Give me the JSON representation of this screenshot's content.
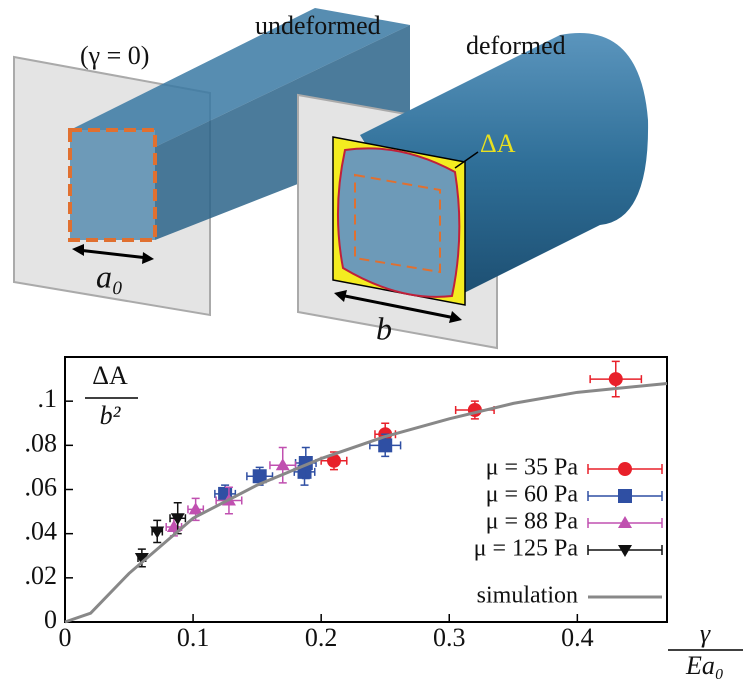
{
  "diagram": {
    "undeformed": "undeformed",
    "undeformed_condition": "(γ = 0)",
    "deformed": "deformed",
    "area_label": "ΔA",
    "side_undeformed": "a₀",
    "side_deformed": "b"
  },
  "chart_data": {
    "type": "scatter",
    "ylabel_numerator": "ΔA",
    "ylabel_denominator": "b²",
    "xlabel_numerator": "γ",
    "xlabel_denominator": "Ea₀",
    "xlim": [
      0,
      0.47
    ],
    "ylim": [
      0,
      0.12
    ],
    "xticks": [
      0,
      0.1,
      0.2,
      0.3,
      0.4
    ],
    "yticks": [
      0,
      {
        "value": 0.02,
        "label": ".02"
      },
      {
        "value": 0.04,
        "label": ".04"
      },
      {
        "value": 0.06,
        "label": ".06"
      },
      {
        "value": 0.08,
        "label": ".08"
      },
      {
        "value": 0.1,
        "label": ".1"
      }
    ],
    "series": [
      {
        "name": "μ = 35 Pa",
        "color": "#e8202a",
        "marker": "circle",
        "x": [
          0.21,
          0.25,
          0.32,
          0.43
        ],
        "values": [
          0.073,
          0.085,
          0.096,
          0.11
        ],
        "xerr": [
          0.01,
          0.008,
          0.015,
          0.02
        ],
        "yerr": [
          0.004,
          0.005,
          0.004,
          0.008
        ]
      },
      {
        "name": "μ = 60 Pa",
        "color": "#2f4fa3",
        "marker": "square",
        "x": [
          0.125,
          0.152,
          0.187,
          0.188,
          0.25
        ],
        "values": [
          0.058,
          0.066,
          0.068,
          0.072,
          0.08
        ],
        "xerr": [
          0.008,
          0.01,
          0.008,
          0.008,
          0.012
        ],
        "yerr": [
          0.004,
          0.004,
          0.006,
          0.007,
          0.005
        ]
      },
      {
        "name": "μ = 88 Pa",
        "color": "#c050b0",
        "marker": "triangle",
        "x": [
          0.085,
          0.102,
          0.128,
          0.17
        ],
        "values": [
          0.043,
          0.051,
          0.055,
          0.071
        ],
        "xerr": [
          0.006,
          0.006,
          0.01,
          0.01
        ],
        "yerr": [
          0.004,
          0.005,
          0.006,
          0.008
        ]
      },
      {
        "name": "μ = 125 Pa",
        "color": "#111111",
        "marker": "down-triangle",
        "x": [
          0.06,
          0.072,
          0.088
        ],
        "values": [
          0.029,
          0.041,
          0.047
        ],
        "xerr": [
          0.003,
          0.004,
          0.006
        ],
        "yerr": [
          0.004,
          0.005,
          0.007
        ]
      },
      {
        "name": "simulation",
        "color": "#888888",
        "type": "line",
        "x": [
          0,
          0.02,
          0.05,
          0.1,
          0.15,
          0.2,
          0.25,
          0.3,
          0.35,
          0.4,
          0.47
        ],
        "values": [
          0,
          0.004,
          0.022,
          0.047,
          0.062,
          0.074,
          0.084,
          0.092,
          0.099,
          0.104,
          0.108
        ]
      }
    ]
  }
}
